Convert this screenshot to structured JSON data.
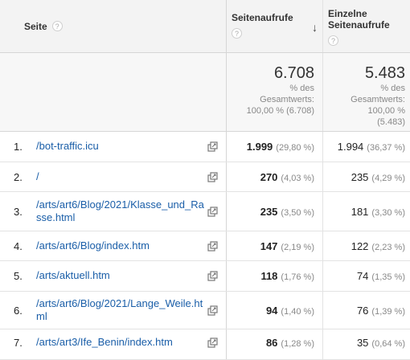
{
  "header": {
    "page_label": "Seite",
    "pageviews_label": "Seitenaufrufe",
    "unique_label_line1": "Einzelne",
    "unique_label_line2": "Seitenaufrufe",
    "help_glyph": "?",
    "sort_glyph": "↓"
  },
  "totals": {
    "pageviews": {
      "value": "6.708",
      "line1": "% des",
      "line2": "Gesamtwerts:",
      "line3": "100,00 % (6.708)"
    },
    "unique": {
      "value": "5.483",
      "line1": "% des",
      "line2": "Gesamtwerts:",
      "line3": "100,00 %",
      "line4": "(5.483)"
    }
  },
  "rows": [
    {
      "num": "1.",
      "page": "/bot-traffic.icu",
      "pv": "1.999",
      "pv_pct": "(29,80 %)",
      "upv": "1.994",
      "upv_pct": "(36,37 %)"
    },
    {
      "num": "2.",
      "page": "/",
      "pv": "270",
      "pv_pct": "(4,03 %)",
      "upv": "235",
      "upv_pct": "(4,29 %)"
    },
    {
      "num": "3.",
      "page": "/arts/art6/Blog/2021/Klasse_und_Rasse.html",
      "pv": "235",
      "pv_pct": "(3,50 %)",
      "upv": "181",
      "upv_pct": "(3,30 %)"
    },
    {
      "num": "4.",
      "page": "/arts/art6/Blog/index.htm",
      "pv": "147",
      "pv_pct": "(2,19 %)",
      "upv": "122",
      "upv_pct": "(2,23 %)"
    },
    {
      "num": "5.",
      "page": "/arts/aktuell.htm",
      "pv": "118",
      "pv_pct": "(1,76 %)",
      "upv": "74",
      "upv_pct": "(1,35 %)"
    },
    {
      "num": "6.",
      "page": "/arts/art6/Blog/2021/Lange_Weile.html",
      "pv": "94",
      "pv_pct": "(1,40 %)",
      "upv": "76",
      "upv_pct": "(1,39 %)"
    },
    {
      "num": "7.",
      "page": "/arts/art3/Ife_Benin/index.htm",
      "pv": "86",
      "pv_pct": "(1,28 %)",
      "upv": "35",
      "upv_pct": "(0,64 %)"
    }
  ],
  "icons": {
    "help": "help-circle-icon",
    "sort": "arrow-down-icon",
    "external": "open-in-new-window-icon"
  }
}
